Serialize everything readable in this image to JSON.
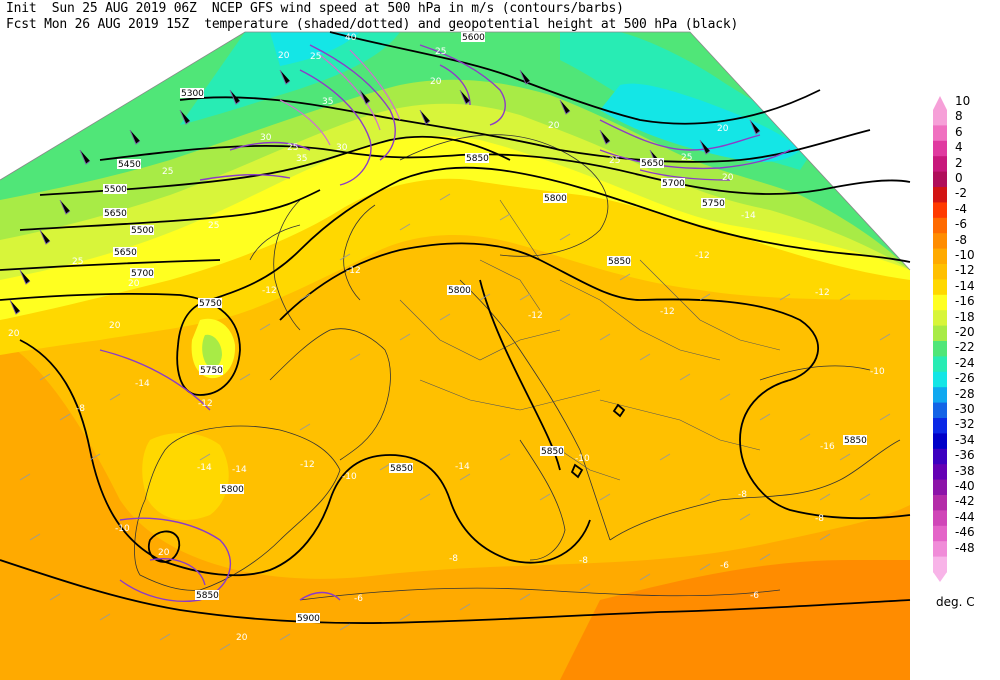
{
  "header": {
    "line1": "Init  Sun 25 AUG 2019 06Z  NCEP GFS wind speed at 500 hPa in m/s (contours/barbs)",
    "line2": "Fcst Mon 26 AUG 2019 15Z  temperature (shaded/dotted) and geopotential height at 500 hPa (black)"
  },
  "colorbar": {
    "unit": "deg. C",
    "levels": [
      {
        "label": "10",
        "color": "#f6a0d8"
      },
      {
        "label": "8",
        "color": "#f070c0"
      },
      {
        "label": "6",
        "color": "#e03aa0"
      },
      {
        "label": "4",
        "color": "#c8187c"
      },
      {
        "label": "2",
        "color": "#b00e5a"
      },
      {
        "label": "0",
        "color": "#d21414"
      },
      {
        "label": "-2",
        "color": "#ff3a00"
      },
      {
        "label": "-4",
        "color": "#ff6a00"
      },
      {
        "label": "-6",
        "color": "#ff8c00"
      },
      {
        "label": "-8",
        "color": "#ffaa00"
      },
      {
        "label": "-10",
        "color": "#ffc000"
      },
      {
        "label": "-12",
        "color": "#ffd800"
      },
      {
        "label": "-14",
        "color": "#ffff20"
      },
      {
        "label": "-16",
        "color": "#d8f53a"
      },
      {
        "label": "-18",
        "color": "#a8eb46"
      },
      {
        "label": "-20",
        "color": "#50e678"
      },
      {
        "label": "-22",
        "color": "#28ecb4"
      },
      {
        "label": "-24",
        "color": "#14e6e6"
      },
      {
        "label": "-26",
        "color": "#10a8f0"
      },
      {
        "label": "-28",
        "color": "#1464e6"
      },
      {
        "label": "-30",
        "color": "#0a28e6"
      },
      {
        "label": "-32",
        "color": "#0000c8"
      },
      {
        "label": "-34",
        "color": "#3c00c0"
      },
      {
        "label": "-36",
        "color": "#6400b4"
      },
      {
        "label": "-38",
        "color": "#8c14a8"
      },
      {
        "label": "-40",
        "color": "#b42ca8"
      },
      {
        "label": "-42",
        "color": "#d046b8"
      },
      {
        "label": "-44",
        "color": "#e464c8"
      },
      {
        "label": "-46",
        "color": "#f08cd8"
      },
      {
        "label": "-48",
        "color": "#f8b4e8"
      }
    ]
  },
  "height_labels": [
    "5600",
    "5300",
    "5450",
    "5500",
    "5650",
    "5500",
    "5650",
    "5700",
    "5750",
    "5750",
    "5800",
    "5850",
    "5850",
    "5850",
    "5800",
    "5850",
    "5850",
    "5900",
    "5700",
    "5750",
    "5800",
    "5650",
    "5850"
  ],
  "temp_labels": [
    "-12",
    "-12",
    "-12",
    "-12",
    "-12",
    "-12",
    "-12",
    "-12",
    "-14",
    "-14",
    "-14",
    "-14",
    "-14",
    "-16",
    "-10",
    "-10",
    "-10",
    "-10",
    "-8",
    "-8",
    "-8",
    "-8",
    "-8",
    "-6",
    "-6",
    "-6"
  ],
  "wind_labels": [
    "20",
    "25",
    "25",
    "30",
    "30",
    "35",
    "35",
    "40",
    "25",
    "20",
    "20",
    "20",
    "25",
    "25",
    "25",
    "20",
    "20",
    "20",
    "25",
    "20",
    "20",
    "25",
    "20"
  ]
}
